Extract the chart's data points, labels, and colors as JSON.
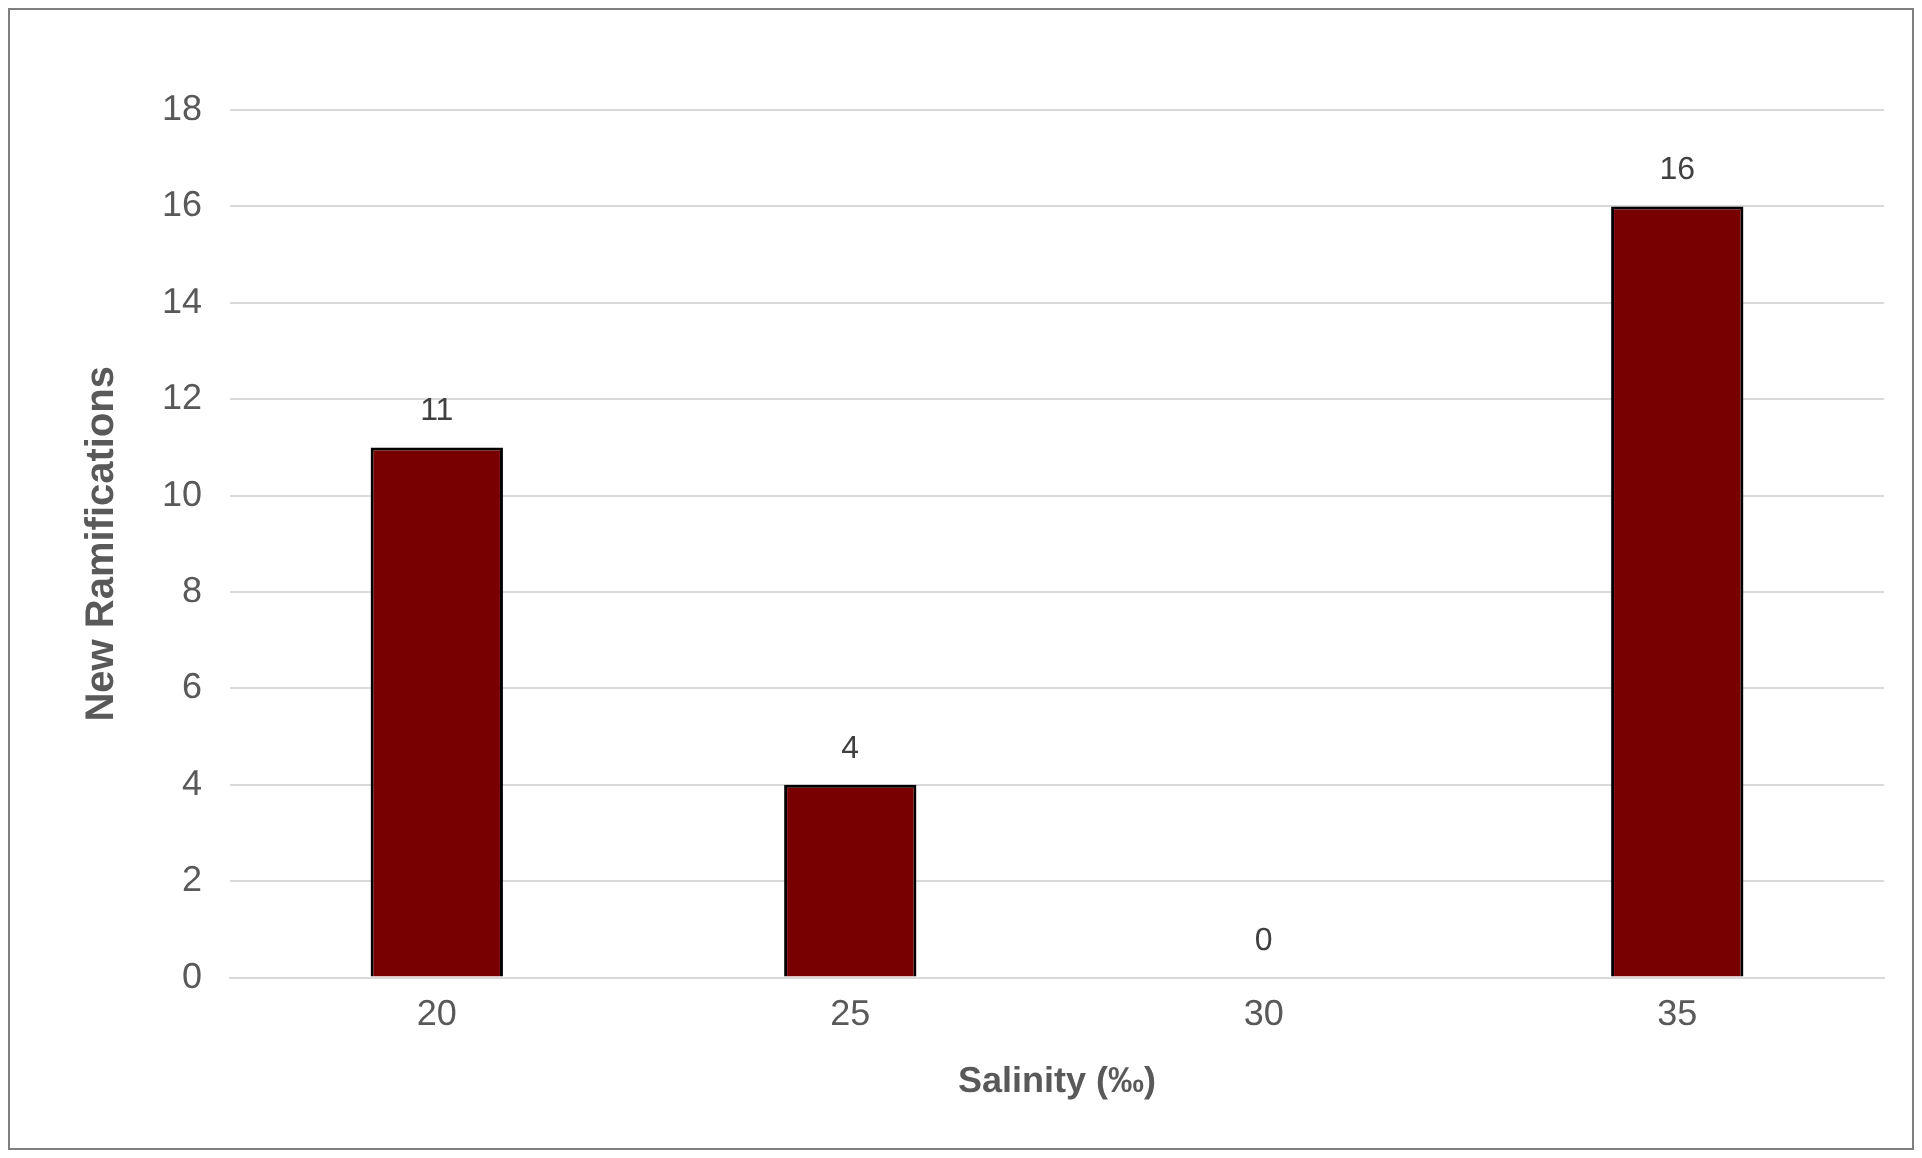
{
  "chart_data": {
    "type": "bar",
    "xlabel": "Salinity (‰)",
    "ylabel": "New Ramifications",
    "categories": [
      "20",
      "25",
      "30",
      "35"
    ],
    "values": [
      11,
      4,
      0,
      16
    ],
    "color": "#780000",
    "ylim": [
      0,
      18
    ],
    "yticks": [
      0,
      2,
      4,
      6,
      8,
      10,
      12,
      14,
      16,
      18
    ],
    "grid": "y",
    "data_labels": true
  }
}
